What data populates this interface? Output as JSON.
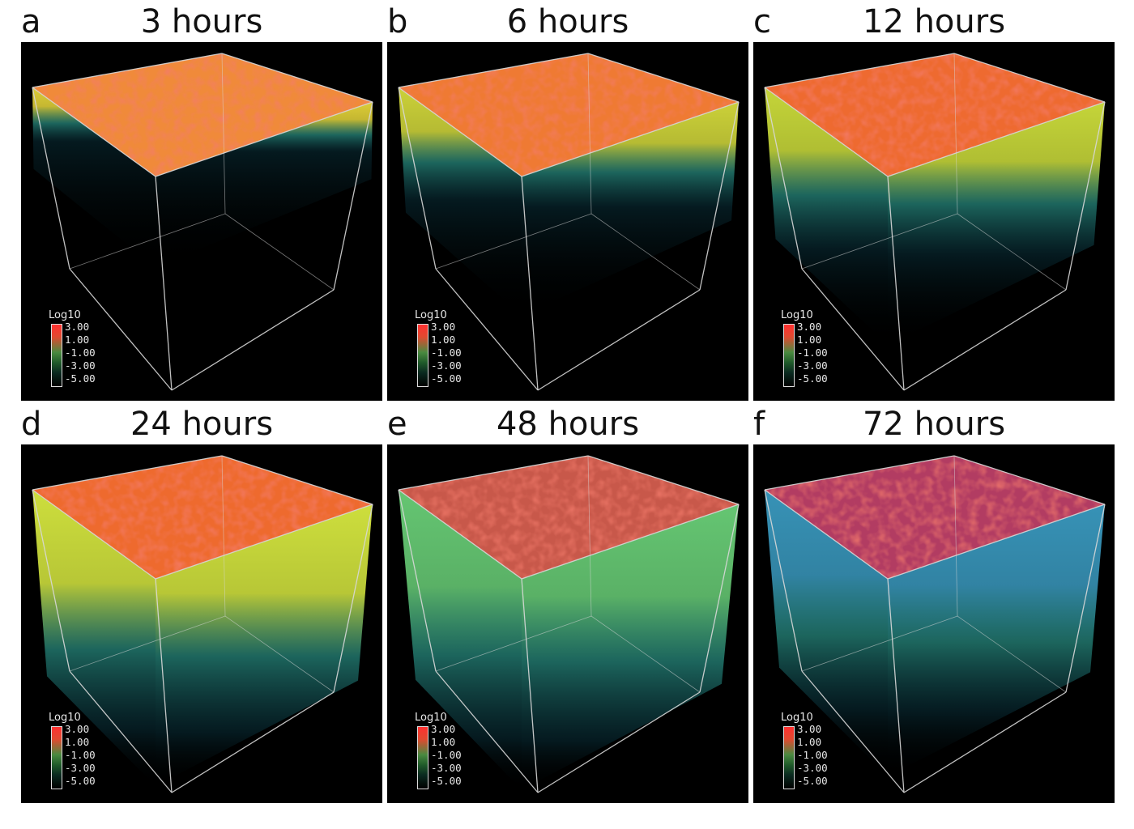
{
  "legend": {
    "title": "Log10",
    "ticks": [
      "3.00",
      "1.00",
      "-1.00",
      "-3.00",
      "-5.00"
    ]
  },
  "panels": [
    {
      "letter": "a",
      "title": "3 hours",
      "top_color": "#f08a3a",
      "depth": 0.3,
      "spread": 0.05,
      "tint": "#e8d83a"
    },
    {
      "letter": "b",
      "title": "6 hours",
      "top_color": "#ef7a33",
      "depth": 0.55,
      "spread": 0.3,
      "tint": "#d6dc3c"
    },
    {
      "letter": "c",
      "title": "12 hours",
      "top_color": "#ee6a30",
      "depth": 0.7,
      "spread": 0.45,
      "tint": "#cfe03c"
    },
    {
      "letter": "d",
      "title": "24 hours",
      "top_color": "#ee6a2e",
      "depth": 0.9,
      "spread": 0.6,
      "tint": "#d8ea40"
    },
    {
      "letter": "e",
      "title": "48 hours",
      "top_color": "#c8584a",
      "depth": 0.92,
      "spread": 0.7,
      "tint": "#6ad078"
    },
    {
      "letter": "f",
      "title": "72 hours",
      "top_color": "#b23c62",
      "depth": 0.85,
      "spread": 0.6,
      "tint": "#3a9ac0"
    }
  ]
}
